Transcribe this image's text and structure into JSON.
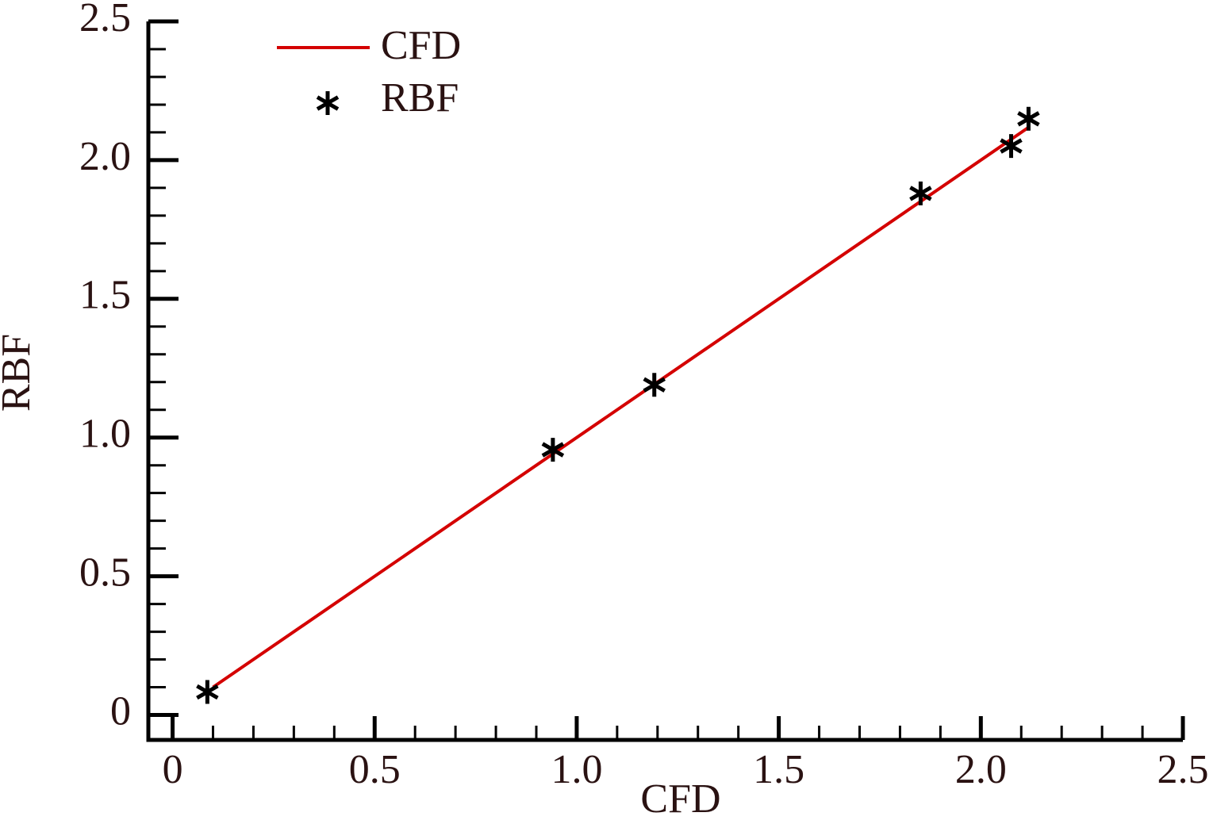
{
  "chart_data": {
    "type": "line",
    "x_label": "CFD",
    "y_label": "RBF",
    "xlim": [
      -0.06,
      2.5
    ],
    "ylim": [
      -0.09,
      2.5
    ],
    "xticks": [
      0,
      0.5,
      {
        "value": 1,
        "label": "1.0"
      },
      1.5,
      {
        "value": 2,
        "label": "2.0"
      },
      2.5
    ],
    "yticks": [
      0,
      0.5,
      {
        "value": 1,
        "label": "1.0"
      },
      1.5,
      {
        "value": 2,
        "label": "2.0"
      },
      2.5
    ],
    "x_minor_ticks": [
      0.1,
      0.2,
      0.3,
      0.4,
      0.6,
      0.7,
      0.8,
      0.9,
      1.1,
      1.2,
      1.3,
      1.4,
      1.6,
      1.7,
      1.8,
      1.9,
      2.1,
      2.2,
      2.3,
      2.4
    ],
    "y_minor_ticks": [
      0.1,
      0.2,
      0.3,
      0.4,
      0.6,
      0.7,
      0.8,
      0.9,
      1.1,
      1.2,
      1.3,
      1.4,
      1.6,
      1.7,
      1.8,
      1.9,
      2.1,
      2.2,
      2.3,
      2.4
    ],
    "series": [
      {
        "name": "CFD",
        "style": "line",
        "color": "#d40000",
        "x": [
          0.1,
          2.118
        ],
        "values": [
          0.1,
          2.118
        ]
      },
      {
        "name": "RBF",
        "style": "asterisk",
        "color": "#000000",
        "x": [
          0.086,
          0.941,
          1.192,
          1.851,
          2.075,
          2.118
        ],
        "values": [
          0.083,
          0.956,
          1.19,
          1.88,
          2.051,
          2.149
        ]
      }
    ]
  }
}
